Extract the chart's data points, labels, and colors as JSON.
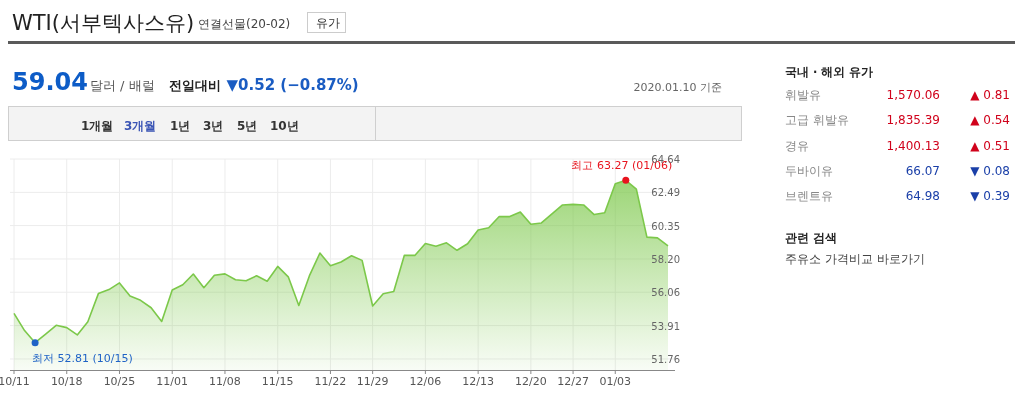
{
  "chart_data": [
    {
      "type": "area",
      "title": "WTI(서부텍사스유)",
      "subtitle": "연결선물(20-02)",
      "categories": [
        "10/11",
        null,
        null,
        null,
        null,
        "10/18",
        null,
        null,
        null,
        null,
        "10/25",
        null,
        null,
        null,
        null,
        "11/01",
        null,
        null,
        null,
        null,
        "11/08",
        null,
        null,
        null,
        null,
        "11/15",
        null,
        null,
        null,
        null,
        "11/22",
        null,
        null,
        null,
        "11/29",
        null,
        null,
        null,
        null,
        "12/06",
        null,
        null,
        null,
        null,
        "12/13",
        null,
        null,
        null,
        null,
        "12/20",
        null,
        null,
        null,
        "12/27",
        null,
        null,
        null,
        "01/03",
        null,
        null,
        null,
        null,
        null
      ],
      "series": [
        {
          "color": "#7cc84a",
          "values": [
            54.7,
            53.59,
            52.81,
            53.36,
            53.93,
            53.78,
            53.31,
            54.16,
            55.97,
            56.23,
            56.66,
            55.81,
            55.54,
            55.06,
            54.18,
            56.2,
            56.54,
            57.23,
            56.35,
            57.15,
            57.24,
            56.86,
            56.8,
            57.12,
            56.77,
            57.72,
            57.05,
            55.21,
            57.11,
            58.58,
            57.77,
            58.01,
            58.41,
            58.11,
            55.17,
            55.96,
            56.1,
            58.43,
            58.43,
            59.2,
            59.02,
            59.24,
            58.76,
            59.18,
            60.07,
            60.21,
            60.94,
            60.93,
            61.22,
            60.44,
            60.52,
            61.11,
            61.68,
            61.72,
            61.68,
            61.06,
            61.18,
            63.05,
            63.27,
            62.7,
            59.61,
            59.56,
            59.04
          ]
        }
      ],
      "ylim": [
        51.05,
        64.64
      ],
      "yticks": [
        51.76,
        53.91,
        56.06,
        {
          "value": 58.2,
          "label": "58.20"
        },
        60.35,
        62.49,
        64.64
      ],
      "grid": true,
      "annotations": [
        "최저 52.81 (10/15)",
        "최고 63.27 (01/06)",
        "유가",
        "59.04",
        "달러 / 배럴",
        "전일대비",
        "▼0.52 (−0.87%)",
        "2020.01.10 기준",
        "1개월",
        "3개월",
        "1년",
        "3년",
        "5년",
        "10년"
      ]
    },
    {
      "type": "other",
      "title": "국내 · 해외 유가",
      "annotations": [
        "휘발유",
        "1,570.06",
        "▲ 0.81",
        "고급 휘발유",
        "1,835.39",
        "▲ 0.54",
        "경유",
        "1,400.13",
        "▲ 0.51",
        "두바이유",
        "66.07",
        "▼ 0.08",
        "브렌트유",
        "64.98",
        "▼ 0.39",
        "관련 검색",
        "주유소 가격비교 바로가기"
      ],
      "colors": [
        "#888888",
        "#d0021b",
        "#d0021b",
        "#888888",
        "#d0021b",
        "#d0021b",
        "#888888",
        "#d0021b",
        "#d0021b",
        "#888888",
        "#1a3fa8",
        "#1a3fa8",
        "#888888",
        "#1a3fa8",
        "#1a3fa8",
        "#222222",
        "#444444"
      ]
    }
  ]
}
